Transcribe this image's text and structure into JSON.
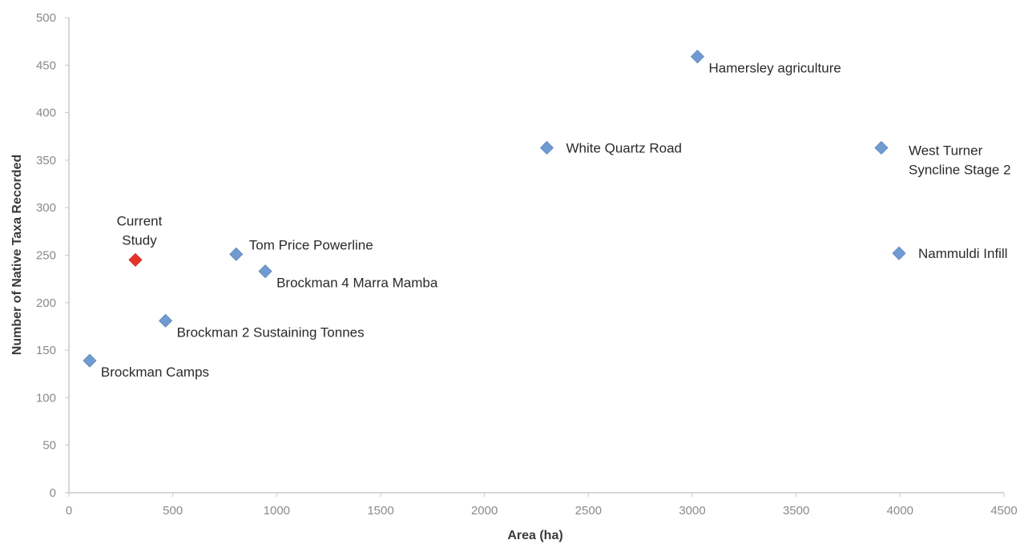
{
  "chart_data": {
    "type": "scatter",
    "title": "",
    "xlabel": "Area (ha)",
    "ylabel": "Number of Native Taxa Recorded",
    "xlim": [
      0,
      4500
    ],
    "ylim": [
      0,
      500
    ],
    "x_ticks": [
      0,
      500,
      1000,
      1500,
      2000,
      2500,
      3000,
      3500,
      4000,
      4500
    ],
    "y_ticks": [
      0,
      50,
      100,
      150,
      200,
      250,
      300,
      350,
      400,
      450,
      500
    ],
    "grid": false,
    "legend": "none",
    "colors": {
      "default": "#6f9bd1",
      "highlight": "#e8332a",
      "axis": "#c8c8c8"
    },
    "points": [
      {
        "label_lines": [
          "Brockman Camps"
        ],
        "x": 100,
        "y": 139,
        "highlight": false,
        "label_pos": "below-right"
      },
      {
        "label_lines": [
          "Brockman 2 Sustaining Tonnes"
        ],
        "x": 465,
        "y": 181,
        "highlight": false,
        "label_pos": "below-right"
      },
      {
        "label_lines": [
          "Current",
          "Study"
        ],
        "x": 320,
        "y": 245,
        "highlight": true,
        "label_pos": "above"
      },
      {
        "label_lines": [
          "Tom Price Powerline"
        ],
        "x": 805,
        "y": 251,
        "highlight": false,
        "label_pos": "above-right"
      },
      {
        "label_lines": [
          "Brockman 4 Marra Mamba"
        ],
        "x": 945,
        "y": 233,
        "highlight": false,
        "label_pos": "below-right"
      },
      {
        "label_lines": [
          "White Quartz Road"
        ],
        "x": 2300,
        "y": 363,
        "highlight": false,
        "label_pos": "right"
      },
      {
        "label_lines": [
          "Hamersley agriculture"
        ],
        "x": 3025,
        "y": 459,
        "highlight": false,
        "label_pos": "below-right"
      },
      {
        "label_lines": [
          "West Turner",
          "Syncline Stage 2"
        ],
        "x": 3910,
        "y": 363,
        "highlight": false,
        "label_pos": "right-two-line"
      },
      {
        "label_lines": [
          "Nammuldi Infill"
        ],
        "x": 3995,
        "y": 252,
        "highlight": false,
        "label_pos": "right"
      }
    ]
  }
}
